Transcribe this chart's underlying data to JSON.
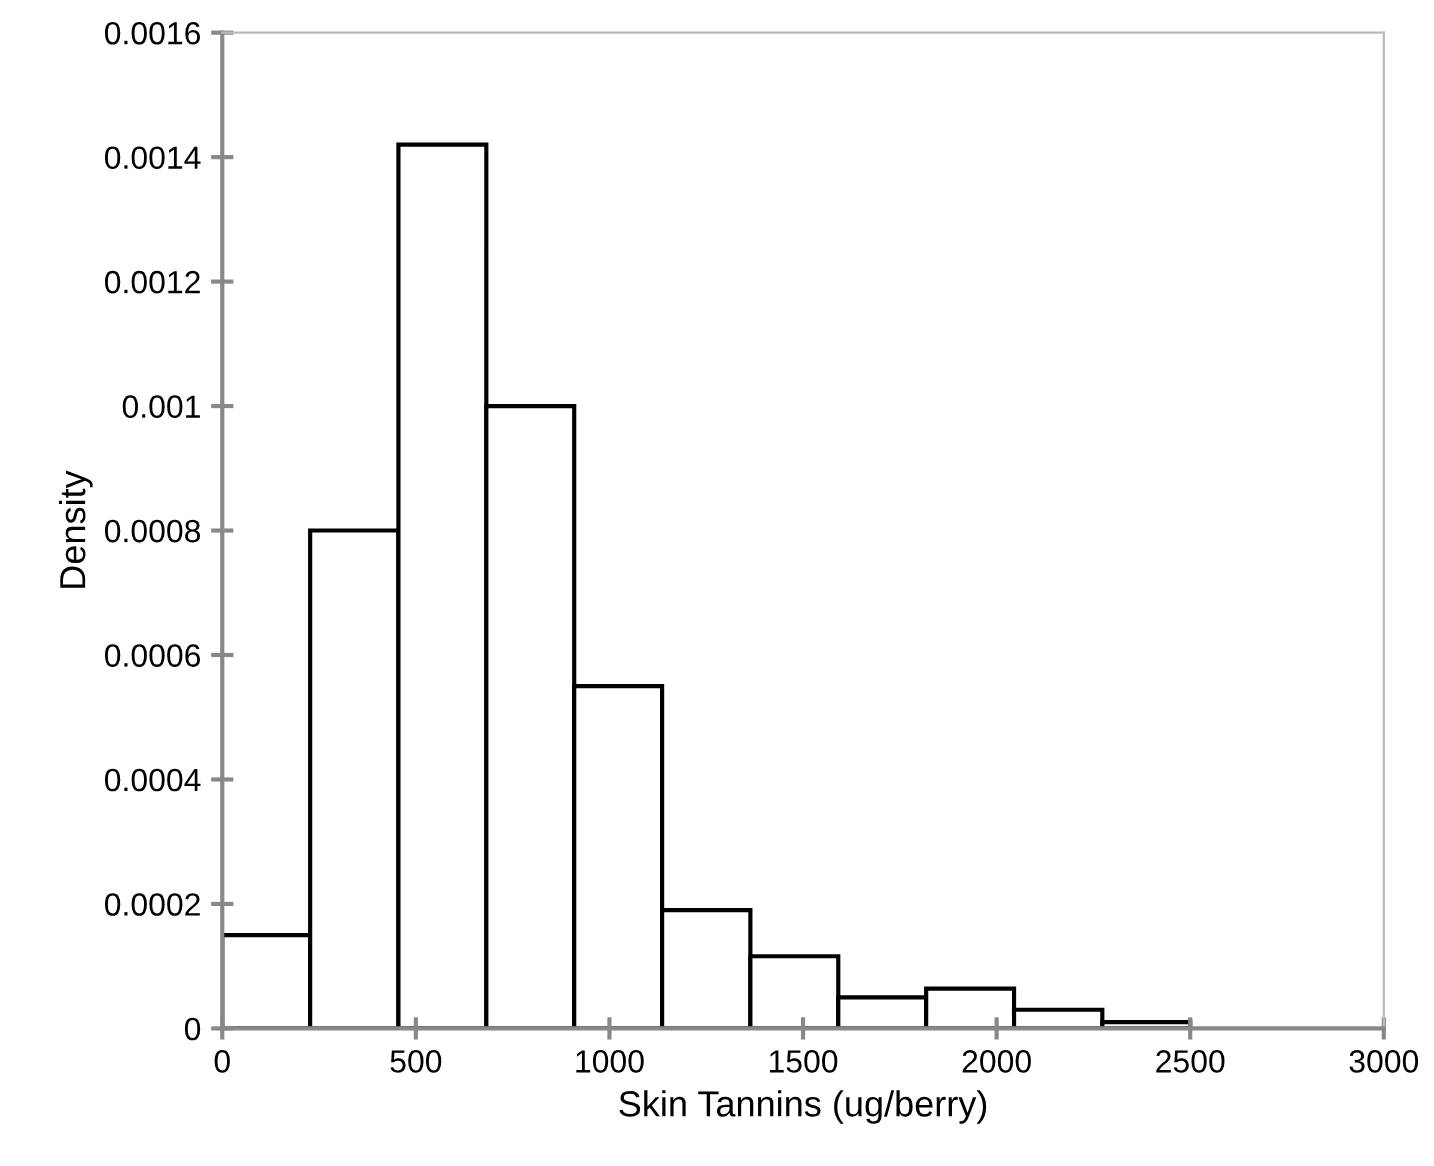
{
  "chart_data": {
    "type": "histogram",
    "xlabel": "Skin Tannins (ug/berry)",
    "ylabel": "Density",
    "bins": [
      0,
      227,
      455,
      682,
      909,
      1136,
      1364,
      1591,
      1818,
      2045,
      2273,
      2500
    ],
    "values": [
      0.00015,
      0.0008,
      0.00142,
      0.001,
      0.00055,
      0.00019,
      0.000116,
      5e-05,
      6.4e-05,
      3e-05,
      1e-05
    ],
    "color": "#ffffff",
    "xlim": [
      0,
      3000
    ],
    "ylim": [
      0,
      0.0016
    ],
    "xticks": [
      0,
      500,
      1000,
      1500,
      2000,
      2500,
      3000
    ],
    "yticks": [
      0,
      {
        "value": 0.0002,
        "label": "0.0002"
      },
      {
        "value": 0.0004,
        "label": "0.0004"
      },
      {
        "value": 0.0006,
        "label": "0.0006"
      },
      {
        "value": 0.0008,
        "label": "0.0008"
      },
      {
        "value": 0.001,
        "label": "0.001"
      },
      {
        "value": 0.0012,
        "label": "0.0012"
      },
      {
        "value": 0.0014,
        "label": "0.0014"
      },
      {
        "value": 0.0016,
        "label": "0.0016"
      }
    ],
    "grid": false,
    "legend": false
  }
}
